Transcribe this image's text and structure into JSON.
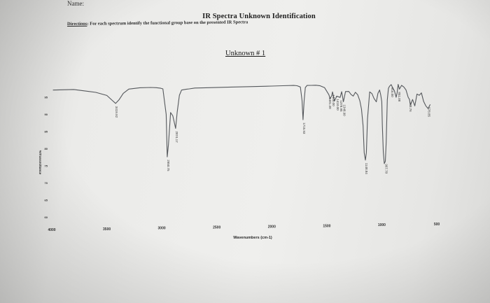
{
  "header": {
    "name_line": "Name:",
    "title": "IR Spectra Unknown Identification",
    "directions_label": "Directions",
    "directions_text": ": For each spectrum identify the functional group base on the presented IR Spectra",
    "unknown_label": "Unknown # 1"
  },
  "chart_data": {
    "type": "line",
    "title": "",
    "xlabel": "Wavenumbers (cm-1)",
    "ylabel": "%Transmittance",
    "xlim": [
      4000,
      500
    ],
    "ylim": [
      60,
      100
    ],
    "x_ticks": [
      "4000",
      "3500",
      "3000",
      "2500",
      "2000",
      "1500",
      "1000",
      "500"
    ],
    "y_ticks": [
      "95",
      "90",
      "85",
      "80",
      "75",
      "70",
      "65",
      "60"
    ],
    "series": [
      {
        "x": [
          3990,
          3900,
          3800,
          3700,
          3600,
          3500,
          3450,
          3419.92,
          3390,
          3350,
          3300,
          3200,
          3100,
          3050,
          3010,
          2990,
          2960,
          2950.75,
          2940,
          2920,
          2900,
          2874.17,
          2860,
          2840,
          2820,
          2780,
          2750,
          2700,
          2600,
          2400,
          2200,
          2000,
          1900,
          1800,
          1770,
          1740,
          1725,
          1715.93,
          1706,
          1695,
          1680,
          1640,
          1600,
          1560,
          1520,
          1481.38,
          1470,
          1455,
          1448,
          1430,
          1410,
          1378.95,
          1365,
          1348.9,
          1330,
          1300,
          1280,
          1260,
          1240,
          1220,
          1200,
          1185,
          1170,
          1160,
          1148.84,
          1140,
          1130,
          1110,
          1090,
          1070,
          1050,
          1035,
          1020,
          1010,
          1000,
          995,
          986,
          977,
          967.7,
          960,
          950,
          940,
          930,
          915,
          900,
          885,
          870,
          860,
          851.08,
          840,
          820,
          800,
          780,
          760,
          748.76,
          740,
          720,
          700,
          680,
          660,
          640,
          620,
          600,
          578.85,
          560
        ],
        "y": [
          97,
          97,
          97,
          96.5,
          96,
          95,
          93.5,
          92.6,
          93.6,
          95.5,
          96.7,
          97,
          97,
          96.9,
          96.7,
          96.5,
          89,
          76.5,
          80,
          89.5,
          88.5,
          84.8,
          89.5,
          94.5,
          96,
          96.2,
          96.3,
          96.5,
          96.5,
          96.5,
          96.5,
          96.5,
          96.5,
          96.5,
          96.4,
          96,
          92,
          86.3,
          92,
          95.8,
          96.4,
          96.4,
          96.4,
          96.2,
          95.6,
          93.5,
          92.3,
          93.2,
          94.3,
          91.6,
          93,
          92.6,
          94.3,
          91.3,
          94.3,
          94.3,
          93.4,
          92.9,
          94,
          93.3,
          91.5,
          89,
          84,
          76,
          73.8,
          76,
          86,
          94,
          93.5,
          92,
          91,
          93.5,
          94.5,
          93,
          91,
          84,
          76,
          72.6,
          73.3,
          78.9,
          91.5,
          94.9,
          95.5,
          96,
          95,
          94.1,
          92.2,
          93.6,
          96,
          94.6,
          95.7,
          95.2,
          94.3,
          92.1,
          91.5,
          89.8,
          91.4,
          89.5,
          93,
          92.6,
          93.3,
          90.8,
          89.4,
          88.6,
          89.8
        ]
      }
    ],
    "peak_labels": [
      {
        "x": 3419.92,
        "y": 92.6,
        "label": "3419.92"
      },
      {
        "x": 2950.75,
        "y": 76.5,
        "label": "2950.75"
      },
      {
        "x": 2874.17,
        "y": 84.8,
        "label": "2874.17"
      },
      {
        "x": 1715.93,
        "y": 86.3,
        "label": "1715.93"
      },
      {
        "x": 1481.38,
        "y": 93.5,
        "label": "1481.38"
      },
      {
        "x": 1448.0,
        "y": 94.3,
        "label": "1448.00"
      },
      {
        "x": 1410.0,
        "y": 93.0,
        "label": "1410.00"
      },
      {
        "x": 1378.95,
        "y": 92.6,
        "label": "1378.95"
      },
      {
        "x": 1348.9,
        "y": 91.3,
        "label": "1348.90"
      },
      {
        "x": 1148.84,
        "y": 73.8,
        "label": "1148.84"
      },
      {
        "x": 967.7,
        "y": 73.3,
        "label": "967.70"
      },
      {
        "x": 915.0,
        "y": 96.0,
        "label": "915.00"
      },
      {
        "x": 851.08,
        "y": 94.6,
        "label": "851.08"
      },
      {
        "x": 748.76,
        "y": 91.5,
        "label": "748.76"
      },
      {
        "x": 578.85,
        "y": 89.8,
        "label": "578.85"
      }
    ],
    "grid": false,
    "colors": {
      "line": "#55585c"
    }
  }
}
